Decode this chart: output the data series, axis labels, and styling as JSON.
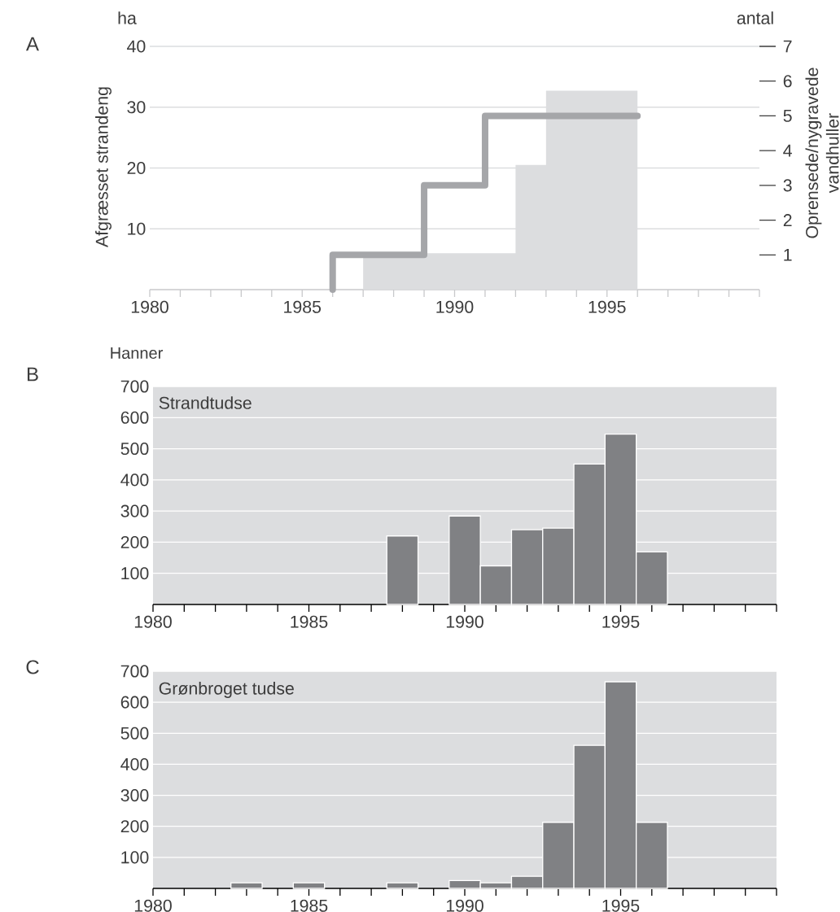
{
  "chart_data": [
    {
      "type": "area",
      "title": "A",
      "ylabel": "Afgræsset strandeng",
      "y2label": "Oprensede/nygravede vandhuller",
      "annotations": [
        "ha",
        "antal"
      ],
      "xlim": [
        1980,
        2000
      ],
      "xticks": [
        1980,
        {
          "value": 1981,
          "label": null
        },
        {
          "value": 1982,
          "label": null
        },
        {
          "value": 1983,
          "label": null
        },
        {
          "value": 1984,
          "label": null
        },
        1985,
        {
          "value": 1986,
          "label": null
        },
        {
          "value": 1987,
          "label": null
        },
        {
          "value": 1988,
          "label": null
        },
        {
          "value": 1989,
          "label": null
        },
        1990,
        {
          "value": 1991,
          "label": null
        },
        {
          "value": 1992,
          "label": null
        },
        {
          "value": 1993,
          "label": null
        },
        {
          "value": 1994,
          "label": null
        },
        1995,
        {
          "value": 1996,
          "label": null
        },
        {
          "value": 1997,
          "label": null
        },
        {
          "value": 1998,
          "label": null
        },
        {
          "value": 1999,
          "label": null
        },
        {
          "value": 2000,
          "label": null
        }
      ],
      "ylim": [
        0,
        40
      ],
      "yticks": [
        10,
        20,
        30,
        40
      ],
      "y2lim": [
        0,
        7
      ],
      "y2ticks": [
        1,
        2,
        3,
        4,
        5,
        6,
        7
      ],
      "grid": "y",
      "series": [
        {
          "type": "area",
          "color": "#dcdddf",
          "x": [
            1987,
            1992,
            1992,
            1993,
            1993,
            1996
          ],
          "values": [
            6,
            6,
            20.5,
            20.5,
            32.7,
            32.7
          ]
        },
        {
          "type": "step",
          "axis": "y2",
          "color": "#a5a6a9",
          "x": [
            1986,
            1986,
            1989,
            1991,
            1996
          ],
          "values": [
            0,
            1,
            3,
            5,
            5
          ]
        }
      ]
    },
    {
      "type": "bar",
      "title": "B",
      "ylabel": "Hanner",
      "annotations": [
        "Strandtudse"
      ],
      "xlim": [
        1980,
        2000
      ],
      "xticks": [
        1980,
        {
          "value": 1981,
          "label": null
        },
        {
          "value": 1982,
          "label": null
        },
        {
          "value": 1983,
          "label": null
        },
        {
          "value": 1984,
          "label": null
        },
        1985,
        {
          "value": 1986,
          "label": null
        },
        {
          "value": 1987,
          "label": null
        },
        {
          "value": 1988,
          "label": null
        },
        {
          "value": 1989,
          "label": null
        },
        1990,
        {
          "value": 1991,
          "label": null
        },
        {
          "value": 1992,
          "label": null
        },
        {
          "value": 1993,
          "label": null
        },
        {
          "value": 1994,
          "label": null
        },
        1995,
        {
          "value": 1996,
          "label": null
        },
        {
          "value": 1997,
          "label": null
        },
        {
          "value": 1998,
          "label": null
        },
        {
          "value": 1999,
          "label": null
        },
        {
          "value": 2000,
          "label": null
        }
      ],
      "ylim": [
        0,
        700
      ],
      "yticks": [
        100,
        200,
        300,
        400,
        500,
        600,
        700
      ],
      "grid": "y",
      "series": [
        {
          "color": "#808184",
          "x": [
            1988,
            1990,
            1991,
            1992,
            1993,
            1994,
            1995,
            1996
          ],
          "values": [
            220,
            284,
            124,
            240,
            245,
            451,
            547,
            169
          ]
        }
      ]
    },
    {
      "type": "bar",
      "title": "C",
      "annotations": [
        "Grønbroget tudse"
      ],
      "xlim": [
        1980,
        2000
      ],
      "xticks": [
        1980,
        {
          "value": 1981,
          "label": null
        },
        {
          "value": 1982,
          "label": null
        },
        {
          "value": 1983,
          "label": null
        },
        {
          "value": 1984,
          "label": null
        },
        1985,
        {
          "value": 1986,
          "label": null
        },
        {
          "value": 1987,
          "label": null
        },
        {
          "value": 1988,
          "label": null
        },
        {
          "value": 1989,
          "label": null
        },
        1990,
        {
          "value": 1991,
          "label": null
        },
        {
          "value": 1992,
          "label": null
        },
        {
          "value": 1993,
          "label": null
        },
        {
          "value": 1994,
          "label": null
        },
        1995,
        {
          "value": 1996,
          "label": null
        },
        {
          "value": 1997,
          "label": null
        },
        {
          "value": 1998,
          "label": null
        },
        {
          "value": 1999,
          "label": null
        },
        {
          "value": 2000,
          "label": null
        }
      ],
      "ylim": [
        0,
        700
      ],
      "yticks": [
        100,
        200,
        300,
        400,
        500,
        600,
        700
      ],
      "grid": "y",
      "series": [
        {
          "color": "#808184",
          "x": [
            1983,
            1985,
            1988,
            1990,
            1991,
            1992,
            1993,
            1994,
            1995,
            1996
          ],
          "values": [
            18,
            18,
            18,
            25,
            18,
            39,
            213,
            461,
            666,
            213
          ]
        }
      ]
    }
  ]
}
